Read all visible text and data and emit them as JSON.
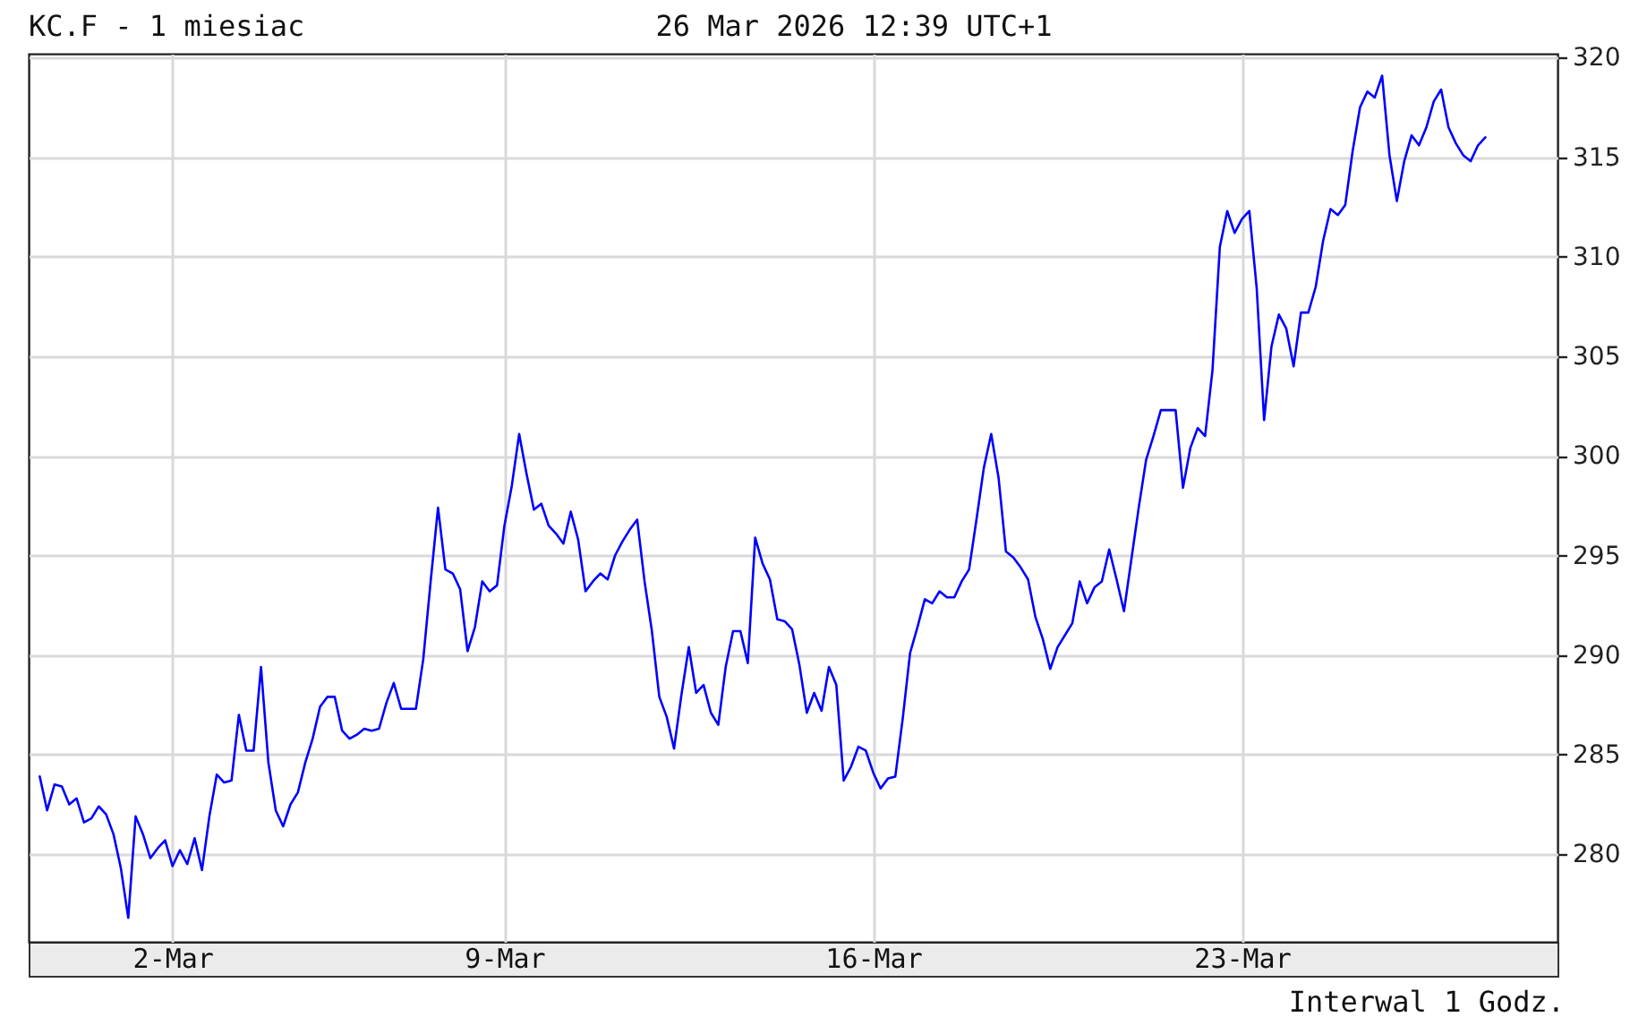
{
  "chart_data": {
    "type": "line",
    "title": "KC.F - 1 miesiac",
    "subtitle": "26 Mar 2026 12:39 UTC+1",
    "annotations": [
      "Interwal 1 Godz."
    ],
    "color": "#0000ff",
    "grid": true,
    "categories": [
      null,
      null,
      null,
      null,
      null,
      null,
      null,
      null,
      null,
      null,
      null,
      null,
      null,
      null,
      null,
      null,
      null,
      null,
      "2-Mar",
      null,
      null,
      null,
      null,
      null,
      null,
      null,
      null,
      null,
      null,
      null,
      null,
      null,
      null,
      null,
      null,
      null,
      null,
      null,
      null,
      null,
      null,
      null,
      null,
      null,
      null,
      null,
      null,
      null,
      null,
      null,
      null,
      null,
      null,
      null,
      null,
      null,
      null,
      null,
      null,
      null,
      null,
      null,
      null,
      "9-Mar",
      null,
      null,
      null,
      null,
      null,
      null,
      null,
      null,
      null,
      null,
      null,
      null,
      null,
      null,
      null,
      null,
      null,
      null,
      null,
      null,
      null,
      null,
      null,
      null,
      null,
      null,
      null,
      null,
      null,
      null,
      null,
      null,
      null,
      null,
      null,
      null,
      null,
      null,
      null,
      null,
      null,
      null,
      null,
      null,
      null,
      null,
      null,
      null,
      null,
      "16-Mar",
      null,
      null,
      null,
      null,
      null,
      null,
      null,
      null,
      null,
      null,
      null,
      null,
      null,
      null,
      null,
      null,
      null,
      null,
      null,
      null,
      null,
      null,
      null,
      null,
      null,
      null,
      null,
      null,
      null,
      null,
      null,
      null,
      null,
      null,
      null,
      null,
      null,
      null,
      null,
      null,
      null,
      null,
      null,
      null,
      null,
      null,
      null,
      null,
      null,
      "23-Mar",
      null,
      null,
      null,
      null,
      null,
      null,
      null,
      null,
      null,
      null,
      null,
      null,
      null,
      null,
      null,
      null,
      null,
      null,
      null,
      null,
      null,
      null,
      null,
      null,
      null,
      null,
      null,
      null,
      null,
      null,
      null,
      null,
      null
    ],
    "ylim": [
      275.6,
      320.2
    ],
    "yticks": [
      280,
      285,
      290,
      295,
      300,
      305,
      310,
      315,
      320
    ],
    "values": [
      283.9,
      282.2,
      283.5,
      283.4,
      282.5,
      282.8,
      281.6,
      281.8,
      282.4,
      282.0,
      281.0,
      279.3,
      276.8,
      281.9,
      281.0,
      279.8,
      280.3,
      280.7,
      279.4,
      280.2,
      279.5,
      280.8,
      279.2,
      281.9,
      284.0,
      283.6,
      283.7,
      287.0,
      285.2,
      285.2,
      289.4,
      284.6,
      282.2,
      281.4,
      282.5,
      283.1,
      284.6,
      285.8,
      287.4,
      287.9,
      287.9,
      286.2,
      285.8,
      286.0,
      286.3,
      286.2,
      286.3,
      287.6,
      288.6,
      287.3,
      287.3,
      287.3,
      289.8,
      293.7,
      297.4,
      294.3,
      294.1,
      293.3,
      290.2,
      291.4,
      293.7,
      293.2,
      293.5,
      296.5,
      298.5,
      301.1,
      299.1,
      297.3,
      297.6,
      296.5,
      296.1,
      295.6,
      297.2,
      295.8,
      293.2,
      293.7,
      294.1,
      293.8,
      295.0,
      295.7,
      296.3,
      296.8,
      293.7,
      291.2,
      287.9,
      286.9,
      285.3,
      288.0,
      290.4,
      288.1,
      288.5,
      287.1,
      286.5,
      289.4,
      291.2,
      291.2,
      289.6,
      295.9,
      294.6,
      293.8,
      291.8,
      291.7,
      291.3,
      289.5,
      287.1,
      288.1,
      287.2,
      289.4,
      288.5,
      283.7,
      284.4,
      285.4,
      285.2,
      284.1,
      283.3,
      283.8,
      283.9,
      286.8,
      290.1,
      291.4,
      292.8,
      292.6,
      293.2,
      292.9,
      292.9,
      293.7,
      294.3,
      296.8,
      299.4,
      301.1,
      298.9,
      295.2,
      294.9,
      294.4,
      293.8,
      291.9,
      290.8,
      289.3,
      290.4,
      291.0,
      291.6,
      293.7,
      292.6,
      293.4,
      293.7,
      295.3,
      293.8,
      292.2,
      294.8,
      297.4,
      299.8,
      301.0,
      302.3,
      302.3,
      302.3,
      298.4,
      300.4,
      301.4,
      301.0,
      304.3,
      310.5,
      312.3,
      311.2,
      311.9,
      312.3,
      308.4,
      301.8,
      305.5,
      307.1,
      306.4,
      304.5,
      307.2,
      307.2,
      308.5,
      310.8,
      312.4,
      312.1,
      312.6,
      315.3,
      317.5,
      318.3,
      318.0,
      319.1,
      315.1,
      312.8,
      314.8,
      316.1,
      315.6,
      316.5,
      317.8,
      318.4,
      316.5,
      315.7,
      315.1,
      314.8,
      315.6,
      316.0
    ]
  }
}
